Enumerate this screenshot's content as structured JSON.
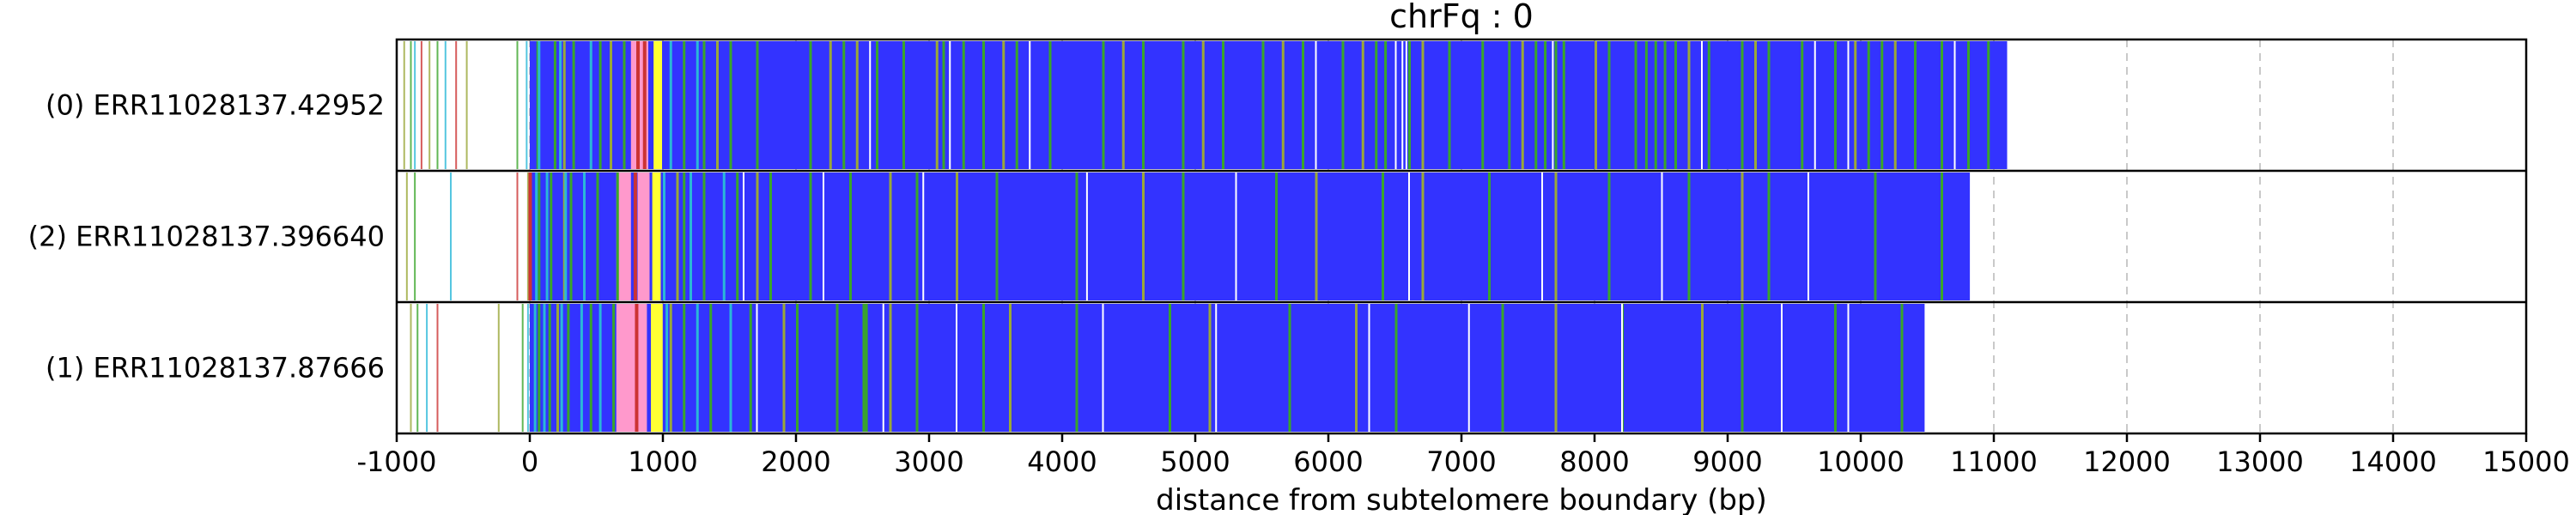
{
  "chart_data": {
    "type": "bar",
    "title": "chrFq : 0",
    "xlabel": "distance from subtelomere boundary (bp)",
    "ylabel": "",
    "xlim": [
      -1000,
      15000
    ],
    "xticks": [
      -1000,
      0,
      1000,
      2000,
      3000,
      4000,
      5000,
      6000,
      7000,
      8000,
      9000,
      10000,
      11000,
      12000,
      13000,
      14000,
      15000
    ],
    "grid": "vertical dashed",
    "colors": {
      "repeat": "#3333ff",
      "green": "#3aa52a",
      "olive": "#9aa838",
      "cyan": "#2ab8d8",
      "yellow": "#ffff33",
      "pink": "#ff99cc",
      "red": "#cc3333",
      "white": "#ffffff"
    },
    "reads": [
      {
        "label": "(0) ERR11028137.42952",
        "main_start": 0,
        "end": 11100,
        "pre_marks": [
          -950,
          -900,
          -870,
          -820,
          -760,
          -700,
          -640,
          -560,
          -480,
          -100,
          -30
        ],
        "green_marks": [
          50,
          180,
          320,
          520,
          700,
          1150,
          1300,
          1500,
          1700,
          2100,
          2350,
          2600,
          2800,
          3100,
          3250,
          3400,
          3650,
          3900,
          4300,
          4600,
          4900,
          5200,
          5500,
          5800,
          6100,
          6350,
          6420,
          6600,
          6900,
          7150,
          7350,
          7550,
          7620,
          7700,
          7760,
          8100,
          8300,
          8380,
          8450,
          8520,
          8600,
          8850,
          9100,
          9300,
          9550,
          9800,
          10050,
          10150,
          10400,
          10600,
          10800,
          10950
        ],
        "olive_marks": [
          250,
          600,
          1400,
          2250,
          2450,
          3050,
          3550,
          4450,
          5050,
          5650,
          6250,
          6700,
          7450,
          8000,
          8700,
          9200,
          9950,
          10250
        ],
        "cyan_marks": [
          60,
          220,
          450,
          1050,
          1250
        ],
        "white_marks": [
          2550,
          3150,
          3750,
          5900,
          6500,
          6550,
          6580,
          7680,
          8800,
          9650,
          9900,
          10700
        ],
        "pink_regions": [
          [
            760,
            890
          ]
        ],
        "yellow_marks": [
          930,
          955
        ],
        "red_marks": [
          800,
          850
        ]
      },
      {
        "label": "(2) ERR11028137.396640",
        "main_start": 0,
        "end": 10820,
        "pre_marks": [
          -930,
          -870,
          -600,
          -100,
          -20
        ],
        "green_marks": [
          60,
          150,
          300,
          500,
          650,
          1150,
          1300,
          1550,
          1800,
          2100,
          2400,
          2900,
          3500,
          4100,
          4900,
          5600,
          6400,
          7200,
          8100,
          8700,
          9300,
          10100,
          10600
        ],
        "olive_marks": [
          250,
          1100,
          1700,
          2700,
          3200,
          4600,
          5900,
          6700,
          7700,
          9100
        ],
        "cyan_marks": [
          40,
          120,
          260,
          400,
          1000,
          1200,
          1450
        ],
        "white_marks": [
          1600,
          2200,
          2950,
          4180,
          5300,
          6600,
          7600,
          8500,
          9600
        ],
        "pink_regions": [
          [
            650,
            760
          ],
          [
            810,
            900
          ]
        ],
        "yellow_marks": [
          920,
          945
        ],
        "red_marks": [
          -10,
          780
        ]
      },
      {
        "label": "(1) ERR11028137.87666",
        "main_start": 0,
        "end": 10480,
        "pre_marks": [
          -900,
          -850,
          -780,
          -700,
          -240,
          -60,
          -20
        ],
        "green_marks": [
          60,
          140,
          280,
          450,
          620,
          1150,
          1350,
          1650,
          2000,
          2300,
          2500,
          2520,
          2900,
          3400,
          4100,
          4800,
          5700,
          6500,
          7300,
          8200,
          9100,
          9800,
          10300
        ],
        "olive_marks": [
          200,
          1050,
          1900,
          2700,
          3600,
          5100,
          6200,
          7700,
          8800
        ],
        "cyan_marks": [
          30,
          100,
          230,
          380,
          520,
          1020,
          1250,
          1500
        ],
        "white_marks": [
          1700,
          2650,
          3200,
          4300,
          5150,
          6300,
          7050,
          8200,
          9400,
          9900
        ],
        "pink_regions": [
          [
            650,
            880
          ]
        ],
        "yellow_marks": [
          910,
          935,
          960
        ],
        "red_marks": [
          790
        ]
      }
    ]
  }
}
